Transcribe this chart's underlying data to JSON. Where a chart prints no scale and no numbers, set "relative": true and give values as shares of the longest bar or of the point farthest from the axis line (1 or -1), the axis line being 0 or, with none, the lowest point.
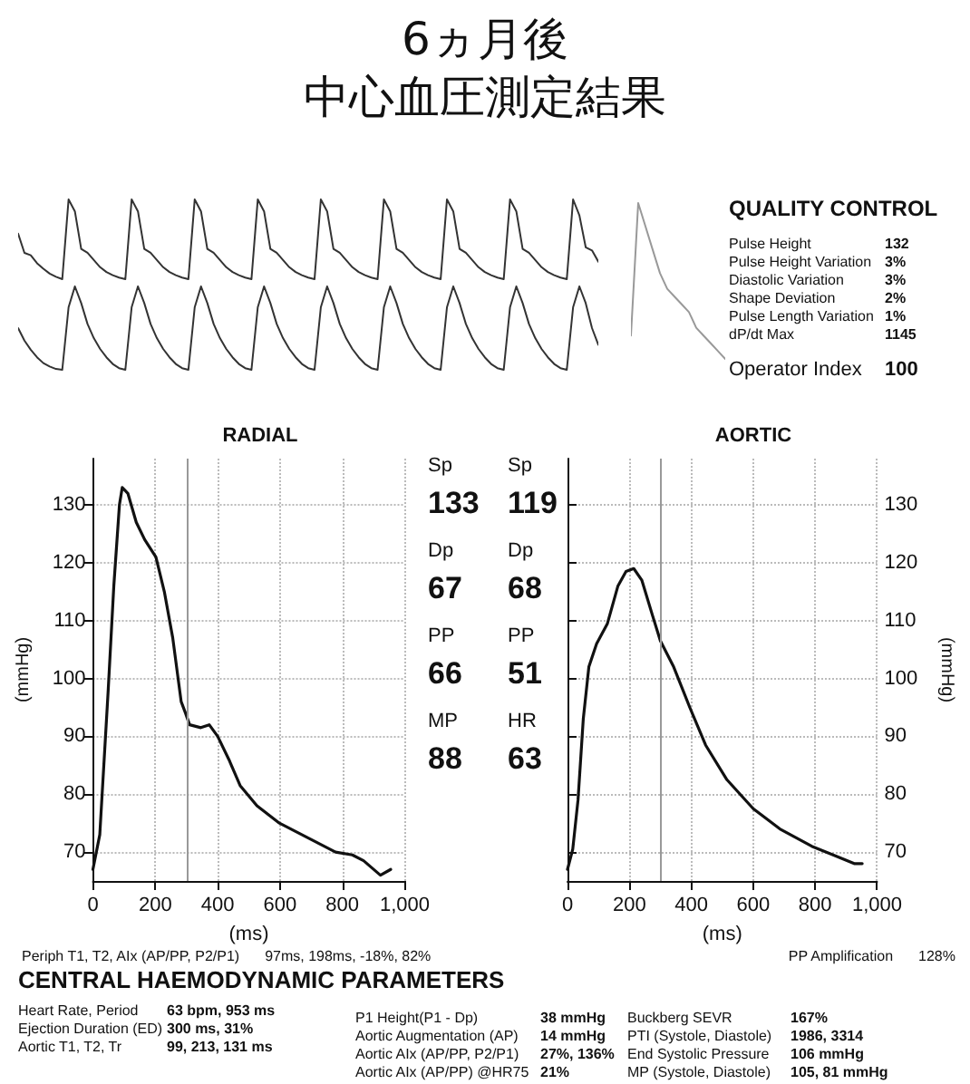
{
  "chart_data": [
    {
      "type": "line",
      "title": "6ヵ月後",
      "subtitle": "中心血圧測定結果",
      "relative": true,
      "marker": "none",
      "color": "#333333",
      "categories": [
        null,
        null,
        null,
        null,
        null,
        null,
        null,
        null,
        null,
        null,
        null,
        null,
        null,
        null,
        null,
        null,
        null,
        null,
        null,
        null,
        null,
        null,
        null,
        null,
        null,
        null,
        null,
        null,
        null,
        null,
        null,
        null,
        null,
        null,
        null,
        null,
        null,
        null,
        null,
        null,
        null,
        null,
        null,
        null,
        null,
        null,
        null,
        null,
        null,
        null,
        null,
        null,
        null,
        null,
        null,
        null,
        null,
        null,
        null,
        null,
        null,
        null,
        null,
        null,
        null,
        null,
        null,
        null,
        null,
        null,
        null,
        null,
        null,
        null,
        null,
        null,
        null,
        null,
        null,
        null,
        null,
        null,
        null,
        null,
        null,
        null,
        null,
        null,
        null,
        null,
        null,
        null,
        null
      ],
      "values": [
        0.57,
        0.33,
        0.3,
        0.2,
        0.13,
        0.07,
        0.03,
        0,
        1,
        0.85,
        0.38,
        0.33,
        0.24,
        0.15,
        0.09,
        0.05,
        0.02,
        0,
        1,
        0.85,
        0.38,
        0.33,
        0.24,
        0.15,
        0.09,
        0.05,
        0.02,
        0,
        1,
        0.85,
        0.38,
        0.33,
        0.24,
        0.15,
        0.09,
        0.05,
        0.02,
        0,
        1,
        0.85,
        0.38,
        0.33,
        0.24,
        0.15,
        0.09,
        0.05,
        0.02,
        0,
        1,
        0.85,
        0.38,
        0.33,
        0.24,
        0.15,
        0.09,
        0.05,
        0.02,
        0,
        1,
        0.85,
        0.38,
        0.33,
        0.24,
        0.15,
        0.09,
        0.05,
        0.02,
        0,
        1,
        0.85,
        0.38,
        0.33,
        0.24,
        0.15,
        0.09,
        0.05,
        0.02,
        0,
        1,
        0.85,
        0.38,
        0.33,
        0.24,
        0.15,
        0.09,
        0.05,
        0.02,
        0,
        1,
        0.8,
        0.4,
        0.36,
        0.22
      ]
    },
    {
      "type": "line",
      "relative": true,
      "marker": "none",
      "color": "#333333",
      "categories": [
        null,
        null,
        null,
        null,
        null,
        null,
        null,
        null,
        null,
        null,
        null,
        null,
        null,
        null,
        null,
        null,
        null,
        null,
        null,
        null,
        null,
        null,
        null,
        null,
        null,
        null,
        null,
        null,
        null,
        null,
        null,
        null,
        null,
        null,
        null,
        null,
        null,
        null,
        null,
        null,
        null,
        null,
        null,
        null,
        null,
        null,
        null,
        null,
        null,
        null,
        null,
        null,
        null,
        null,
        null,
        null,
        null,
        null,
        null,
        null,
        null,
        null,
        null,
        null,
        null,
        null,
        null,
        null,
        null,
        null,
        null,
        null,
        null,
        null,
        null,
        null,
        null,
        null,
        null,
        null,
        null,
        null,
        null,
        null,
        null,
        null,
        null,
        null,
        null,
        null,
        null,
        null,
        null
      ],
      "values": [
        0.5,
        0.35,
        0.24,
        0.15,
        0.08,
        0.04,
        0.01,
        0,
        0.75,
        1,
        0.8,
        0.55,
        0.38,
        0.25,
        0.15,
        0.07,
        0.02,
        0,
        0.75,
        1,
        0.8,
        0.55,
        0.38,
        0.25,
        0.15,
        0.07,
        0.02,
        0,
        0.75,
        1,
        0.8,
        0.55,
        0.38,
        0.25,
        0.15,
        0.07,
        0.02,
        0,
        0.75,
        1,
        0.8,
        0.55,
        0.38,
        0.25,
        0.15,
        0.07,
        0.02,
        0,
        0.75,
        1,
        0.8,
        0.55,
        0.38,
        0.25,
        0.15,
        0.07,
        0.02,
        0,
        0.75,
        1,
        0.8,
        0.55,
        0.38,
        0.25,
        0.15,
        0.07,
        0.02,
        0,
        0.75,
        1,
        0.8,
        0.55,
        0.38,
        0.25,
        0.15,
        0.07,
        0.02,
        0,
        0.75,
        1,
        0.8,
        0.55,
        0.38,
        0.25,
        0.15,
        0.07,
        0.02,
        0,
        0.75,
        1,
        0.8,
        0.5,
        0.3
      ]
    },
    {
      "type": "line",
      "relative": true,
      "marker": "none",
      "color": "#999999",
      "categories": [
        null,
        null,
        null,
        null,
        null,
        null,
        null,
        null,
        null,
        null,
        null,
        null,
        null,
        null
      ],
      "values": [
        0.15,
        1,
        0.85,
        0.7,
        0.55,
        0.45,
        0.4,
        0.35,
        0.3,
        0.2,
        0.15,
        0.1,
        0.05,
        0
      ]
    },
    {
      "type": "other",
      "title": "QUALITY CONTROL",
      "annotations": [
        "Pulse Height\t132",
        "Pulse Height Variation\t3%",
        "Diastolic Variation\t3%",
        "Shape Deviation\t2%",
        "Pulse Length Variation\t1%",
        "dP/dt Max\t1145",
        "Operator Index\t100"
      ]
    },
    {
      "type": "line",
      "title": "RADIAL",
      "xlabel": "(ms)",
      "ylabel": "(mmHg)",
      "marker": "none",
      "color": "#111111",
      "grid": true,
      "xlim": [
        0,
        1000
      ],
      "xticks": [
        0,
        200,
        400,
        600,
        800,
        {
          "value": 1000,
          "label": "1,000"
        }
      ],
      "ylim": [
        65,
        138
      ],
      "yticks": [
        70,
        80,
        90,
        100,
        110,
        120,
        130
      ],
      "ref_lines": [
        {
          "axis": "x",
          "value": 300,
          "color": "#999999"
        }
      ],
      "annotations": [
        "Periph T1, T2, AIx (AP/PP, P2/P1)\t97ms, 198ms, -18%, 82%"
      ],
      "x": [
        0,
        22,
        49,
        67,
        85,
        94,
        112,
        139,
        166,
        202,
        229,
        256,
        283,
        297,
        310,
        346,
        373,
        400,
        436,
        472,
        526,
        598,
        688,
        778,
        832,
        868,
        922,
        955
      ],
      "values": [
        67,
        73,
        98,
        116,
        130,
        133,
        132,
        127,
        124,
        121,
        115,
        107,
        96,
        94,
        92,
        91.5,
        92,
        90,
        86,
        81.5,
        78,
        75,
        72.5,
        70,
        69.5,
        68.5,
        66,
        67
      ]
    },
    {
      "type": "other",
      "annotations": [
        "Sp\tSp",
        "133\t119",
        "Dp\tDp",
        "67\t68",
        "PP\tPP",
        "66\t51",
        "MP\tHR",
        "88\t63"
      ]
    },
    {
      "type": "line",
      "title": "AORTIC",
      "xlabel": "(ms)",
      "ylabel": "(mmHg)",
      "marker": "none",
      "color": "#111111",
      "grid": true,
      "xlim": [
        0,
        1000
      ],
      "xticks": [
        0,
        200,
        400,
        600,
        800,
        {
          "value": 1000,
          "label": "1,000"
        }
      ],
      "ylim": [
        65,
        138
      ],
      "yticks": [
        70,
        80,
        90,
        100,
        110,
        120,
        130
      ],
      "ref_lines": [
        {
          "axis": "x",
          "value": 300,
          "color": "#999999"
        }
      ],
      "annotations": [
        "PP Amplification\t128%"
      ],
      "x": [
        0,
        17,
        34,
        51,
        69,
        94,
        129,
        163,
        189,
        214,
        240,
        274,
        300,
        343,
        395,
        446,
        515,
        600,
        686,
        789,
        858,
        926,
        952
      ],
      "values": [
        67,
        70.5,
        79,
        93,
        102,
        106,
        109.5,
        116,
        118.5,
        119,
        117,
        111,
        106.5,
        102,
        95,
        88.5,
        82.5,
        77.5,
        74,
        71,
        69.5,
        68,
        68
      ]
    },
    {
      "type": "other",
      "title": "CENTRAL HAEMODYNAMIC PARAMETERS",
      "annotations": [
        "Heart Rate, Period\t63 bpm, 953 ms",
        "Ejection Duration (ED)\t300 ms, 31%",
        "Aortic T1, T2, Tr\t99, 213, 131 ms"
      ]
    },
    {
      "type": "other",
      "annotations": [
        "P1 Height(P1 - Dp)\t38 mmHg",
        "Aortic Augmentation (AP)\t14 mmHg",
        "Aortic AIx (AP/PP, P2/P1)\t27%, 136%",
        "Aortic AIx (AP/PP) @HR75\t21%"
      ]
    },
    {
      "type": "other",
      "annotations": [
        "Buckberg SEVR\t167%",
        "PTI (Systole, Diastole)\t1986, 3314",
        "End Systolic Pressure\t106 mmHg",
        "MP (Systole, Diastole)\t105, 81 mmHg"
      ]
    }
  ]
}
